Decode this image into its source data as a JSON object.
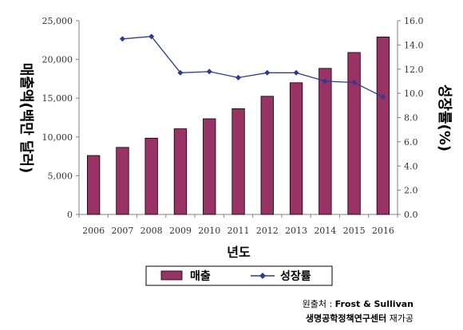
{
  "chart_data": {
    "type": "bar+line",
    "categories": [
      "2006",
      "2007",
      "2008",
      "2009",
      "2010",
      "2011",
      "2012",
      "2013",
      "2014",
      "2015",
      "2016"
    ],
    "series": [
      {
        "name": "매출",
        "type": "bar",
        "axis": "left",
        "color": "#993366",
        "values": [
          7600,
          8650,
          9850,
          11050,
          12350,
          13650,
          15250,
          17000,
          18850,
          20900,
          22900
        ]
      },
      {
        "name": "성장률",
        "type": "line",
        "axis": "right",
        "color": "#2b3d8f",
        "values": [
          null,
          14.5,
          14.7,
          11.7,
          11.8,
          11.3,
          11.7,
          11.7,
          11.0,
          10.9,
          9.7
        ]
      }
    ],
    "xlabel": "년도",
    "ylabel": "매출액(백만 달러)",
    "y2label": "성장률(%)",
    "ylim": [
      0,
      25000
    ],
    "y2lim": [
      0,
      16
    ],
    "yticks": [
      "0",
      "5,000",
      "10,000",
      "15,000",
      "20,000",
      "25,000"
    ],
    "y2ticks": [
      "0.0",
      "2.0",
      "4.0",
      "6.0",
      "8.0",
      "10.0",
      "12.0",
      "14.0",
      "16.0"
    ],
    "legend": {
      "position": "bottom",
      "items": [
        "매출",
        "성장률"
      ]
    },
    "grid": false
  },
  "source": {
    "line1_label": "원출처 : ",
    "line1_value": "Frost & Sullivan",
    "line2_label": "생명공학정책연구센터",
    "line2_value": " 재가공"
  }
}
